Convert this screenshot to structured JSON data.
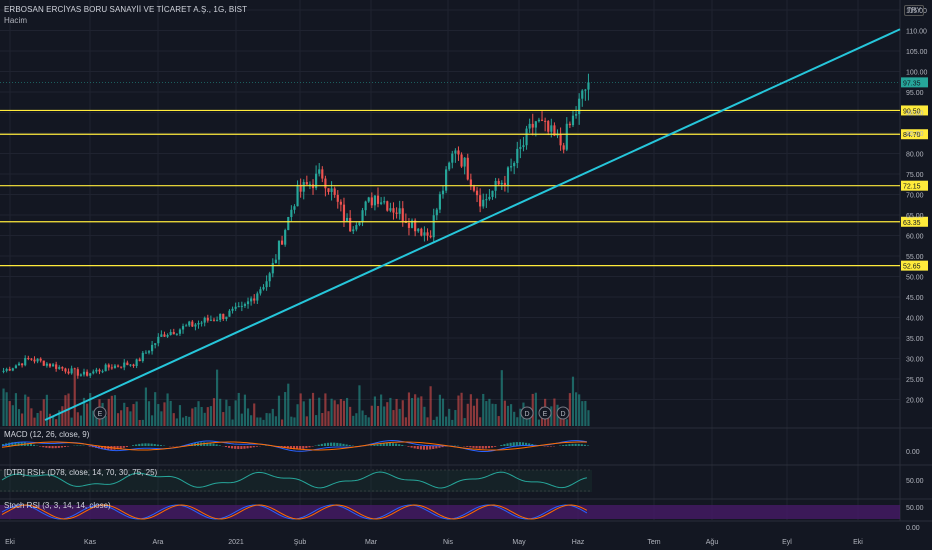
{
  "header": {
    "symbol_title": "ERBOSAN ERCİYAS BORU SANAYİİ VE TİCARET A.Ş., 1G, BIST",
    "volume_label": "Hacim",
    "currency": "TRY"
  },
  "indicators": {
    "macd_label": "MACD (12, 26, close, 9)",
    "rsi_label": "[DTR] RSI+ (D78, close, 14, 70, 30, 75, 25)",
    "stoch_label": "Stoch RSI (3, 3, 14, 14, close)"
  },
  "price_axis": {
    "ticks": [
      "115.00",
      "110.00",
      "105.00",
      "100.00",
      "95.00",
      "90.00",
      "85.00",
      "80.00",
      "75.00",
      "70.00",
      "65.00",
      "60.00",
      "55.00",
      "50.00",
      "45.00",
      "40.00",
      "35.00",
      "30.00",
      "25.00",
      "20.00"
    ],
    "macd_ticks": [
      "0.00"
    ],
    "rsi_ticks": [
      "50.00"
    ],
    "stoch_ticks": [
      "50.00",
      "0.00"
    ]
  },
  "levels": [
    {
      "label": "90.50",
      "value": 90.5
    },
    {
      "label": "84.70",
      "value": 84.7
    },
    {
      "label": "72.15",
      "value": 72.15
    },
    {
      "label": "63.35",
      "value": 63.35
    },
    {
      "label": "52.65",
      "value": 52.65
    }
  ],
  "current_price": {
    "label": "97.35",
    "value": 97.35
  },
  "date_axis": [
    "Eki",
    "Kas",
    "Ara",
    "2021",
    "Şub",
    "Mar",
    "Nis",
    "May",
    "Haz",
    "Tem",
    "Ağu",
    "Eyl",
    "Eki"
  ],
  "events": [
    "E",
    "D",
    "E",
    "D"
  ],
  "colors": {
    "background": "#131722",
    "up": "#26a69a",
    "down": "#ef5350",
    "level": "#ffeb3b",
    "trendline": "#26c6da",
    "grid": "#1f2330",
    "stoch_band": "#4a1b6b"
  },
  "chart_data": {
    "type": "candlestick",
    "title": "ERBOSAN ERCİYAS BORU SANAYİİ VE TİCARET A.Ş., 1G, BIST",
    "ylim": [
      15,
      115
    ],
    "close_path": [
      {
        "x": "Eki",
        "y": 27
      },
      {
        "x": "Eki",
        "y": 30
      },
      {
        "x": "Eki",
        "y": 28
      },
      {
        "x": "Kas",
        "y": 26
      },
      {
        "x": "Kas",
        "y": 28
      },
      {
        "x": "Ara",
        "y": 29
      },
      {
        "x": "Ara",
        "y": 36
      },
      {
        "x": "Ara",
        "y": 38
      },
      {
        "x": "2021",
        "y": 40
      },
      {
        "x": "2021",
        "y": 42
      },
      {
        "x": "Şub",
        "y": 50
      },
      {
        "x": "Şub",
        "y": 70
      },
      {
        "x": "Şub",
        "y": 75
      },
      {
        "x": "Mar",
        "y": 62
      },
      {
        "x": "Mar",
        "y": 70
      },
      {
        "x": "Mar",
        "y": 65
      },
      {
        "x": "Nis",
        "y": 60
      },
      {
        "x": "Nis",
        "y": 82
      },
      {
        "x": "Nis",
        "y": 68
      },
      {
        "x": "May",
        "y": 75
      },
      {
        "x": "May",
        "y": 88
      },
      {
        "x": "May",
        "y": 82
      },
      {
        "x": "Haz",
        "y": 97.35
      }
    ]
  }
}
